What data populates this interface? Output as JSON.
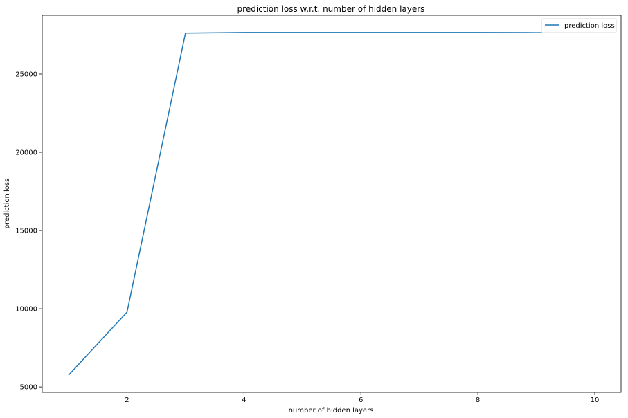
{
  "chart_data": {
    "type": "line",
    "title": "prediction loss w.r.t. number of hidden layers",
    "xlabel": "number of hidden layers",
    "ylabel": "prediction loss",
    "x": [
      1,
      2,
      3,
      4,
      5,
      6,
      7,
      8,
      9,
      10
    ],
    "series": [
      {
        "name": "prediction loss",
        "color": "#1f77b4",
        "values": [
          5750,
          9780,
          27620,
          27660,
          27660,
          27660,
          27660,
          27660,
          27650,
          27660
        ]
      }
    ],
    "xlim": [
      0.55,
      10.45
    ],
    "ylim": [
      4650,
      28760
    ],
    "xticks": [
      2,
      4,
      6,
      8,
      10
    ],
    "yticks": [
      5000,
      10000,
      15000,
      20000,
      25000
    ],
    "xtick_labels": [
      "2",
      "4",
      "6",
      "8",
      "10"
    ],
    "ytick_labels": [
      "5000",
      "10000",
      "15000",
      "20000",
      "25000"
    ],
    "grid": false,
    "legend": {
      "placement": "upper right",
      "entries": [
        "prediction loss"
      ]
    }
  }
}
